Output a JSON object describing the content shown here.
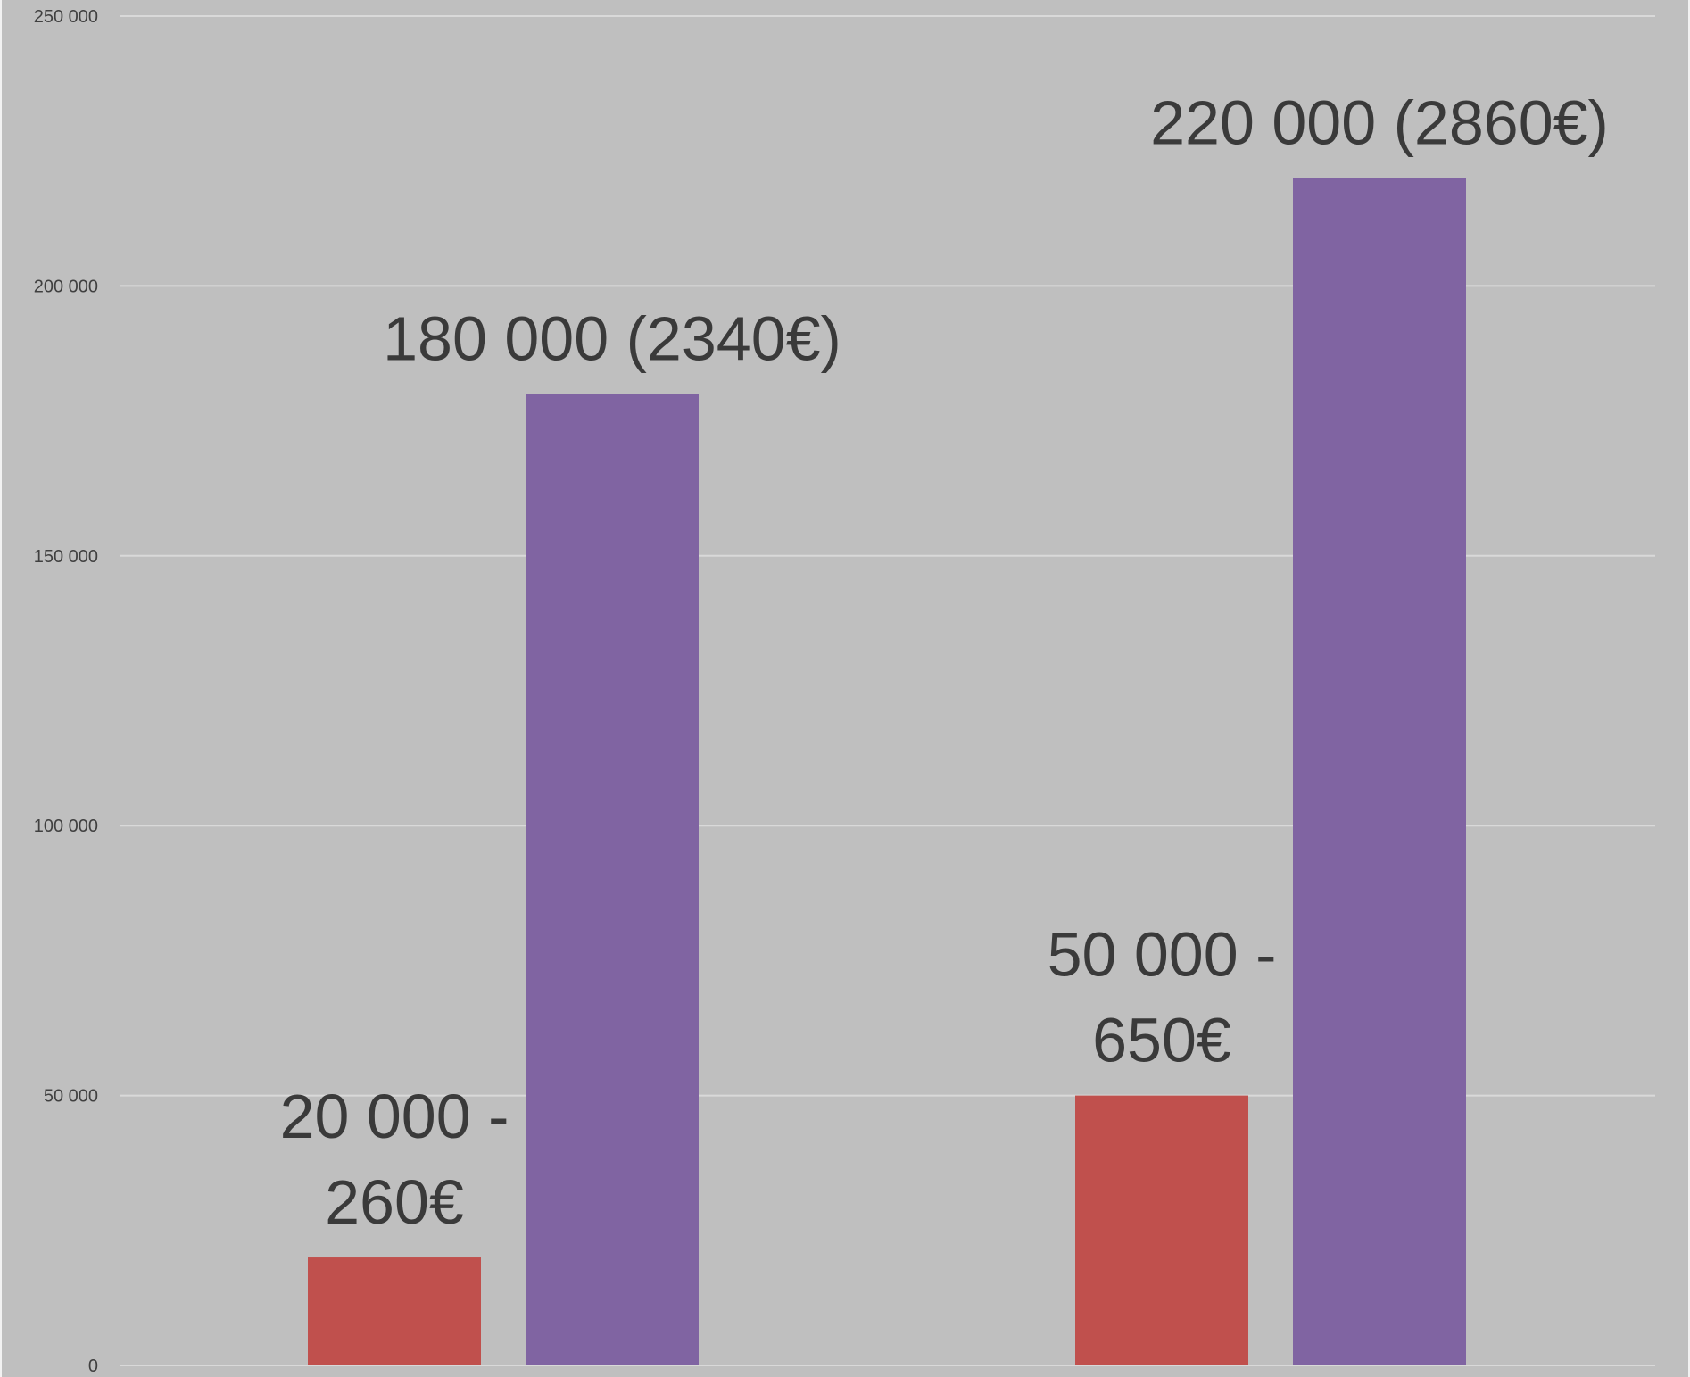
{
  "chart_data": {
    "type": "bar",
    "title": "",
    "xlabel": "",
    "ylabel": "",
    "categories": [
      "",
      ""
    ],
    "ylim": [
      0,
      250000
    ],
    "yticks": [
      {
        "value": 0,
        "label": "0"
      },
      {
        "value": 50000,
        "label": "50 000"
      },
      {
        "value": 100000,
        "label": "100 000"
      },
      {
        "value": 150000,
        "label": "150 000"
      },
      {
        "value": 200000,
        "label": "200 000"
      },
      {
        "value": 250000,
        "label": "250 000"
      }
    ],
    "grid": true,
    "legend": "none",
    "series": [
      {
        "color": "#c0504d",
        "values": [
          20000,
          50000
        ],
        "labels": [
          [
            "20 000 -",
            "260€"
          ],
          [
            "50 000 -",
            "650€"
          ]
        ]
      },
      {
        "color": "#8064a2",
        "values": [
          180000,
          220000
        ],
        "labels": [
          [
            "180 000 (2340€)"
          ],
          [
            "220 000 (2860€)"
          ]
        ]
      }
    ]
  }
}
